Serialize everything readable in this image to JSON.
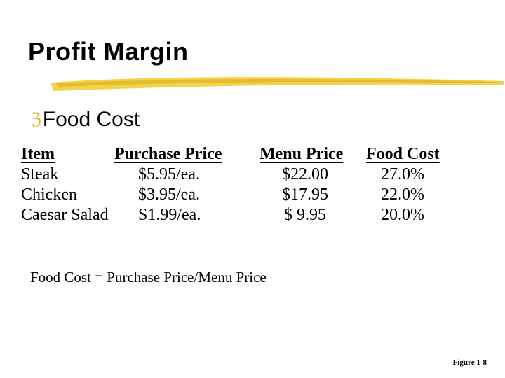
{
  "slide": {
    "title": "Profit Margin",
    "accent_color": "#e8c43a",
    "bullet_icon": "bullet-arrow-icon",
    "bullet_text": "Food Cost"
  },
  "table": {
    "headers": [
      "Item",
      "Purchase Price",
      "Menu Price",
      "Food Cost"
    ],
    "rows": [
      [
        "Steak",
        "$5.95/ea.",
        "$22.00",
        "27.0%"
      ],
      [
        "Chicken",
        "$3.95/ea.",
        "$17.95",
        "22.0%"
      ],
      [
        "Caesar Salad",
        "S1.99/ea.",
        "$ 9.95",
        "20.0%"
      ]
    ]
  },
  "formula": "Food Cost = Purchase Price/Menu Price",
  "figure_label": "Figure 1-8"
}
